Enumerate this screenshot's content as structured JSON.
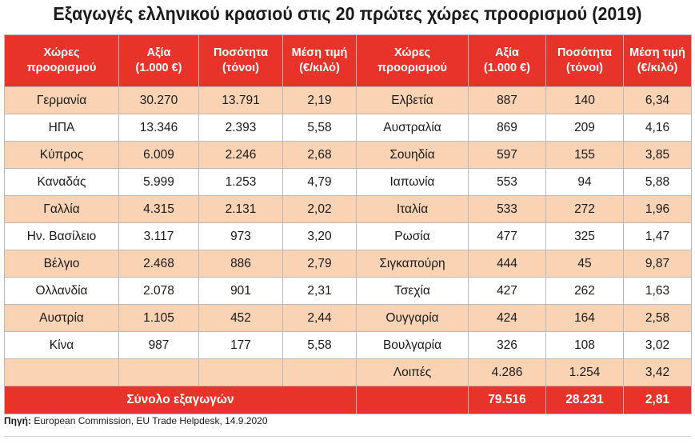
{
  "title": "Εξαγωγές ελληνικού κρασιού στις 20 πρώτες χώρες προορισμού (2019)",
  "header": {
    "country": [
      "Χώρες",
      "προορισμού"
    ],
    "value": [
      "Αξία",
      "(1.000 €)"
    ],
    "quantity": [
      "Ποσότητα",
      "(τόνοι)"
    ],
    "price": [
      "Μέση τιμή",
      "(€/κιλό)"
    ]
  },
  "rows": [
    {
      "left": [
        "Γερμανία",
        "30.270",
        "13.791",
        "2,19"
      ],
      "right": [
        "Ελβετία",
        "887",
        "140",
        "6,34"
      ]
    },
    {
      "left": [
        "ΗΠΑ",
        "13.346",
        "2.393",
        "5,58"
      ],
      "right": [
        "Αυστραλία",
        "869",
        "209",
        "4,16"
      ]
    },
    {
      "left": [
        "Κύπρος",
        "6.009",
        "2.246",
        "2,68"
      ],
      "right": [
        "Σουηδία",
        "597",
        "155",
        "3,85"
      ]
    },
    {
      "left": [
        "Καναδάς",
        "5.999",
        "1.253",
        "4,79"
      ],
      "right": [
        "Ιαπωνία",
        "553",
        "94",
        "5,88"
      ]
    },
    {
      "left": [
        "Γαλλία",
        "4.315",
        "2.131",
        "2,02"
      ],
      "right": [
        "Ιταλία",
        "533",
        "272",
        "1,96"
      ]
    },
    {
      "left": [
        "Ην. Βασίλειο",
        "3.117",
        "973",
        "3,20"
      ],
      "right": [
        "Ρωσία",
        "477",
        "325",
        "1,47"
      ]
    },
    {
      "left": [
        "Βέλγιο",
        "2.468",
        "886",
        "2,79"
      ],
      "right": [
        "Σιγκαπούρη",
        "444",
        "45",
        "9,87"
      ]
    },
    {
      "left": [
        "Ολλανδία",
        "2.078",
        "901",
        "2,31"
      ],
      "right": [
        "Τσεχία",
        "427",
        "262",
        "1,63"
      ]
    },
    {
      "left": [
        "Αυστρία",
        "1.105",
        "452",
        "2,44"
      ],
      "right": [
        "Ουγγαρία",
        "424",
        "164",
        "2,58"
      ]
    },
    {
      "left": [
        "Κίνα",
        "987",
        "177",
        "5,58"
      ],
      "right": [
        "Βουλγαρία",
        "326",
        "108",
        "3,02"
      ]
    },
    {
      "left": [
        "",
        "",
        "",
        ""
      ],
      "right": [
        "Λοιπές",
        "4.286",
        "1.254",
        "3,42"
      ]
    }
  ],
  "total": {
    "label": "Σύνολο εξαγωγών",
    "value": "79.516",
    "quantity": "28.231",
    "price": "2,81"
  },
  "source": {
    "label": "Πηγή:",
    "text": "European Commission, EU Trade Helpdesk, 14.9.2020"
  },
  "colors": {
    "header_red": "#e7332a",
    "row_peach": "#f9d3b4",
    "row_white": "#ffffff"
  }
}
